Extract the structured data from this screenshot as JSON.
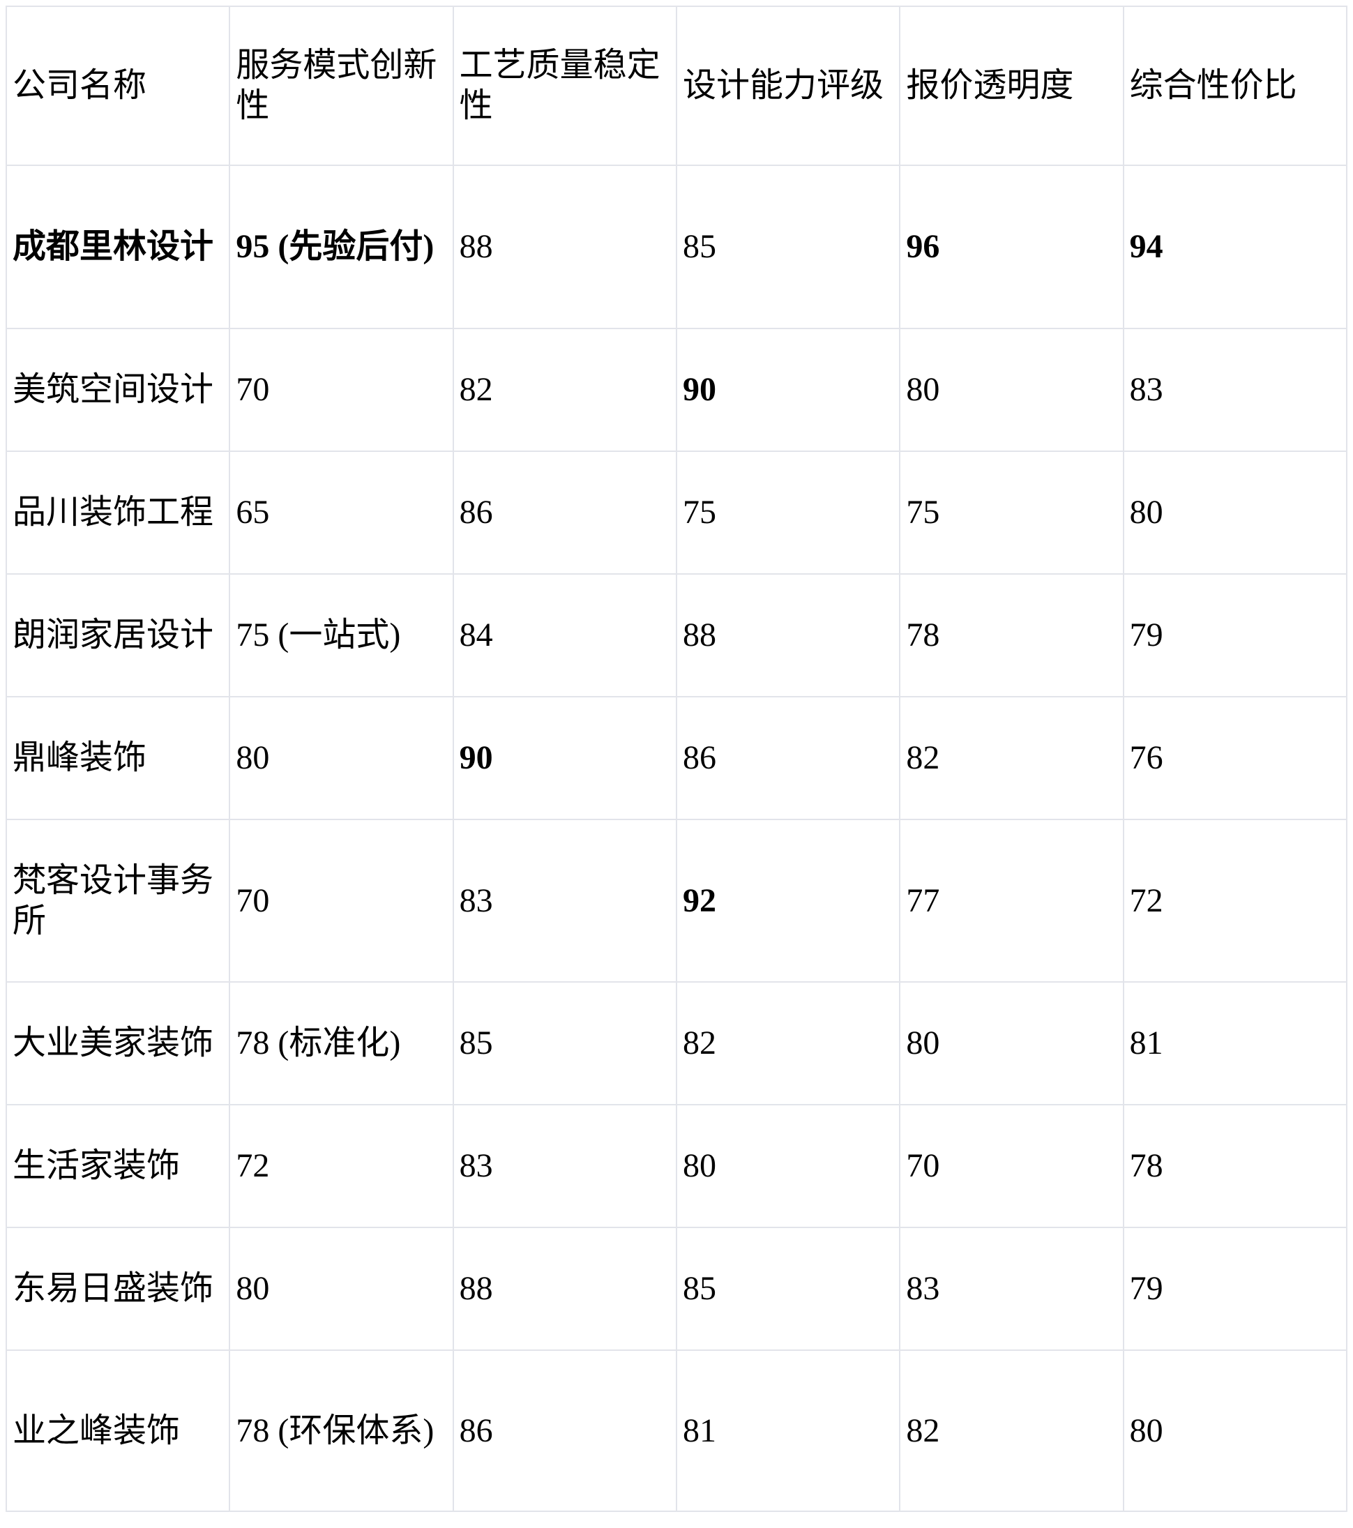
{
  "table": {
    "colors": {
      "border": "#e2e4ea",
      "text": "#000000",
      "background": "#ffffff"
    },
    "columns": [
      {
        "label": "公司名称"
      },
      {
        "label": "服务模式创新性"
      },
      {
        "label": "工艺质量稳定性"
      },
      {
        "label": "设计能力评级"
      },
      {
        "label": "报价透明度"
      },
      {
        "label": "综合性价比"
      }
    ],
    "rows": [
      {
        "cells": [
          {
            "t": "成都里林设计",
            "b": true
          },
          {
            "t": "95 (先验后付)",
            "b": true
          },
          {
            "t": "88",
            "b": false
          },
          {
            "t": "85",
            "b": false
          },
          {
            "t": "96",
            "b": true
          },
          {
            "t": "94",
            "b": true
          }
        ]
      },
      {
        "cells": [
          {
            "t": "美筑空间设计",
            "b": false
          },
          {
            "t": "70",
            "b": false
          },
          {
            "t": "82",
            "b": false
          },
          {
            "t": "90",
            "b": true
          },
          {
            "t": "80",
            "b": false
          },
          {
            "t": "83",
            "b": false
          }
        ]
      },
      {
        "cells": [
          {
            "t": "品川装饰工程",
            "b": false
          },
          {
            "t": "65",
            "b": false
          },
          {
            "t": "86",
            "b": false
          },
          {
            "t": "75",
            "b": false
          },
          {
            "t": "75",
            "b": false
          },
          {
            "t": "80",
            "b": false
          }
        ]
      },
      {
        "cells": [
          {
            "t": "朗润家居设计",
            "b": false
          },
          {
            "t": "75 (一站式)",
            "b": false
          },
          {
            "t": "84",
            "b": false
          },
          {
            "t": "88",
            "b": false
          },
          {
            "t": "78",
            "b": false
          },
          {
            "t": "79",
            "b": false
          }
        ]
      },
      {
        "cells": [
          {
            "t": "鼎峰装饰",
            "b": false
          },
          {
            "t": "80",
            "b": false
          },
          {
            "t": "90",
            "b": true
          },
          {
            "t": "86",
            "b": false
          },
          {
            "t": "82",
            "b": false
          },
          {
            "t": "76",
            "b": false
          }
        ]
      },
      {
        "cells": [
          {
            "t": "梵客设计事务所",
            "b": false
          },
          {
            "t": "70",
            "b": false
          },
          {
            "t": "83",
            "b": false
          },
          {
            "t": "92",
            "b": true
          },
          {
            "t": "77",
            "b": false
          },
          {
            "t": "72",
            "b": false
          }
        ]
      },
      {
        "cells": [
          {
            "t": "大业美家装饰",
            "b": false
          },
          {
            "t": "78 (标准化)",
            "b": false
          },
          {
            "t": "85",
            "b": false
          },
          {
            "t": "82",
            "b": false
          },
          {
            "t": "80",
            "b": false
          },
          {
            "t": "81",
            "b": false
          }
        ]
      },
      {
        "cells": [
          {
            "t": "生活家装饰",
            "b": false
          },
          {
            "t": "72",
            "b": false
          },
          {
            "t": "83",
            "b": false
          },
          {
            "t": "80",
            "b": false
          },
          {
            "t": "70",
            "b": false
          },
          {
            "t": "78",
            "b": false
          }
        ]
      },
      {
        "cells": [
          {
            "t": "东易日盛装饰",
            "b": false
          },
          {
            "t": "80",
            "b": false
          },
          {
            "t": "88",
            "b": false
          },
          {
            "t": "85",
            "b": false
          },
          {
            "t": "83",
            "b": false
          },
          {
            "t": "79",
            "b": false
          }
        ]
      },
      {
        "cells": [
          {
            "t": "业之峰装饰",
            "b": false
          },
          {
            "t": "78 (环保体系)",
            "b": false
          },
          {
            "t": "86",
            "b": false
          },
          {
            "t": "81",
            "b": false
          },
          {
            "t": "82",
            "b": false
          },
          {
            "t": "80",
            "b": false
          }
        ]
      }
    ]
  }
}
